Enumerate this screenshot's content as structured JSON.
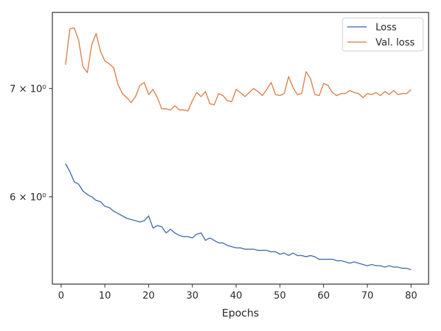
{
  "chart_data": {
    "type": "line",
    "title": "",
    "xlabel": "Epochs",
    "ylabel": "",
    "xlim": [
      -2,
      84
    ],
    "ylim": [
      5.3,
      7.8
    ],
    "y_scale": "log",
    "grid": false,
    "legend_position": "top-right",
    "x_ticks": [
      0,
      10,
      20,
      30,
      40,
      50,
      60,
      70,
      80
    ],
    "x_tick_labels": [
      "0",
      "10",
      "20",
      "30",
      "40",
      "50",
      "60",
      "70",
      "80"
    ],
    "y_ticks": [
      6,
      7
    ],
    "y_tick_labels": [
      "6 × 10⁰",
      "7 × 10⁰"
    ],
    "series": [
      {
        "name": "Loss",
        "color": "#4c72b0",
        "x": [
          1,
          2,
          3,
          4,
          5,
          6,
          7,
          8,
          9,
          10,
          11,
          12,
          13,
          14,
          15,
          16,
          17,
          18,
          19,
          20,
          21,
          22,
          23,
          24,
          25,
          26,
          27,
          28,
          29,
          30,
          31,
          32,
          33,
          34,
          35,
          36,
          37,
          38,
          39,
          40,
          41,
          42,
          43,
          44,
          45,
          46,
          47,
          48,
          49,
          50,
          51,
          52,
          53,
          54,
          55,
          56,
          57,
          58,
          59,
          60,
          61,
          62,
          63,
          64,
          65,
          66,
          67,
          68,
          69,
          70,
          71,
          72,
          73,
          74,
          75,
          76,
          77,
          78,
          79,
          80
        ],
        "y": [
          6.29,
          6.22,
          6.13,
          6.11,
          6.05,
          6.02,
          6.0,
          5.97,
          5.96,
          5.92,
          5.91,
          5.88,
          5.86,
          5.84,
          5.82,
          5.81,
          5.8,
          5.79,
          5.8,
          5.84,
          5.74,
          5.76,
          5.75,
          5.7,
          5.73,
          5.7,
          5.68,
          5.67,
          5.67,
          5.66,
          5.69,
          5.7,
          5.64,
          5.66,
          5.64,
          5.62,
          5.62,
          5.6,
          5.59,
          5.58,
          5.58,
          5.57,
          5.57,
          5.57,
          5.56,
          5.56,
          5.56,
          5.55,
          5.55,
          5.53,
          5.54,
          5.52,
          5.54,
          5.52,
          5.52,
          5.51,
          5.52,
          5.51,
          5.49,
          5.49,
          5.49,
          5.49,
          5.48,
          5.48,
          5.47,
          5.46,
          5.47,
          5.46,
          5.45,
          5.44,
          5.45,
          5.44,
          5.44,
          5.43,
          5.44,
          5.43,
          5.43,
          5.42,
          5.42,
          5.41
        ]
      },
      {
        "name": "Val. loss",
        "color": "#dd8452",
        "x": [
          1,
          2,
          3,
          4,
          5,
          6,
          7,
          8,
          9,
          10,
          11,
          12,
          13,
          14,
          15,
          16,
          17,
          18,
          19,
          20,
          21,
          22,
          23,
          24,
          25,
          26,
          27,
          28,
          29,
          30,
          31,
          32,
          33,
          34,
          35,
          36,
          37,
          38,
          39,
          40,
          41,
          42,
          43,
          44,
          45,
          46,
          47,
          48,
          49,
          50,
          51,
          52,
          53,
          54,
          55,
          56,
          57,
          58,
          59,
          60,
          61,
          62,
          63,
          64,
          65,
          66,
          67,
          68,
          69,
          70,
          71,
          72,
          73,
          74,
          75,
          76,
          77,
          78,
          79,
          80
        ],
        "y": [
          7.24,
          7.62,
          7.63,
          7.5,
          7.22,
          7.16,
          7.45,
          7.57,
          7.38,
          7.28,
          7.25,
          7.21,
          7.04,
          6.95,
          6.91,
          6.86,
          6.92,
          7.03,
          7.06,
          6.94,
          6.99,
          6.91,
          6.8,
          6.8,
          6.79,
          6.83,
          6.79,
          6.79,
          6.78,
          6.88,
          6.96,
          6.92,
          6.97,
          6.85,
          6.84,
          6.95,
          6.93,
          6.88,
          6.87,
          6.99,
          6.96,
          6.92,
          6.96,
          7.0,
          6.97,
          6.93,
          6.99,
          7.06,
          6.94,
          6.93,
          6.95,
          7.12,
          7.01,
          6.94,
          6.95,
          7.17,
          7.1,
          6.94,
          6.93,
          7.05,
          7.03,
          6.96,
          6.93,
          6.95,
          6.95,
          6.98,
          6.96,
          6.95,
          6.91,
          6.95,
          6.94,
          6.96,
          6.93,
          6.97,
          6.94,
          6.98,
          6.94,
          6.95,
          6.95,
          6.99
        ]
      }
    ]
  }
}
